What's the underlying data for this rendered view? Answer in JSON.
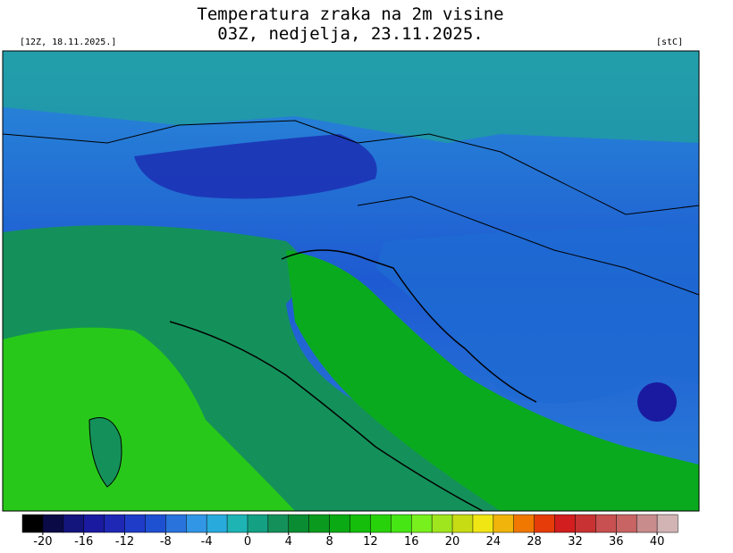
{
  "header": {
    "title": "Temperatura zraka na 2m visine",
    "subtitle": "03Z, nedjelja, 23.11.2025.",
    "run": "[12Z, 18.11.2025.]",
    "unit": "[stC]"
  },
  "colorbar": {
    "range": [
      -22,
      42
    ],
    "colors": [
      "#000000",
      "#0a0a46",
      "#14147d",
      "#1a1aa0",
      "#1e28b4",
      "#1e3cc8",
      "#1e50d2",
      "#2873dc",
      "#3296e6",
      "#28aadc",
      "#1eb4b4",
      "#14a082",
      "#14915a",
      "#0a8c32",
      "#0a9b1e",
      "#0aaa14",
      "#14be0a",
      "#28d20a",
      "#46e614",
      "#78f01e",
      "#a0e61e",
      "#c8dc14",
      "#f0e614",
      "#f0b40a",
      "#f07800",
      "#e63c0a",
      "#d21e1e",
      "#c83232",
      "#c85050",
      "#c86464",
      "#c88c8c",
      "#d2b4b4"
    ],
    "ticks": [
      -20,
      -16,
      -12,
      -8,
      -4,
      0,
      4,
      8,
      12,
      16,
      20,
      24,
      28,
      32,
      36,
      40
    ]
  }
}
